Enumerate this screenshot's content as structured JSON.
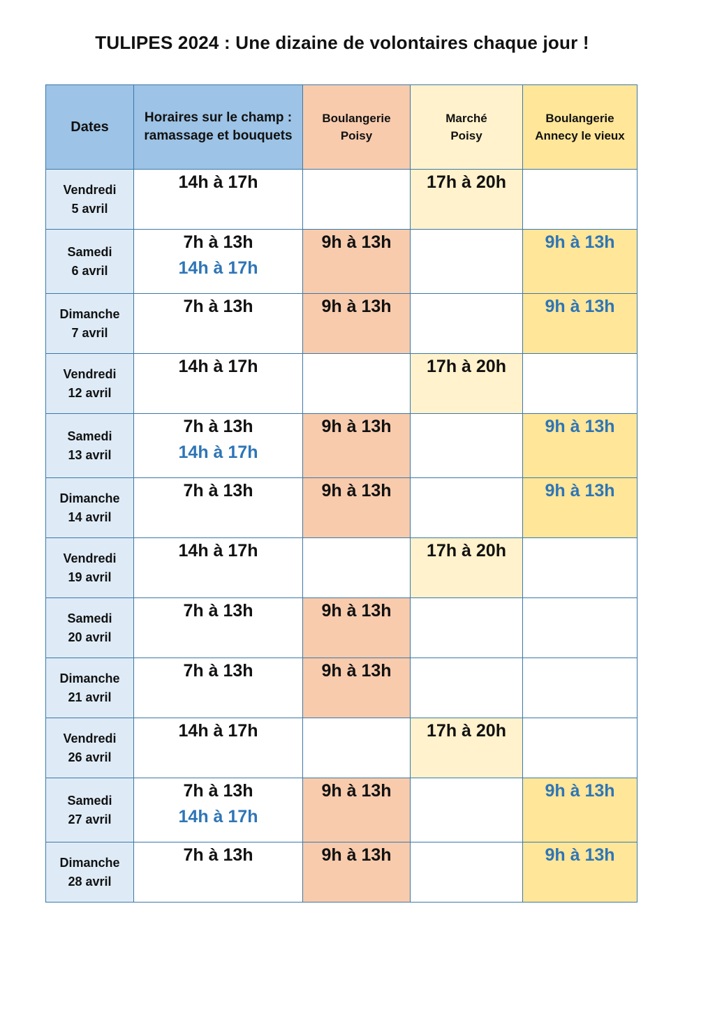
{
  "title": "TULIPES 2024 : Une dizaine de volontaires chaque jour !",
  "headers": {
    "dates": "Dates",
    "champ_line1": "Horaires sur le champ :",
    "champ_line2": "ramassage et bouquets",
    "boulangerie_poisy_line1": "Boulangerie",
    "boulangerie_poisy_line2": "Poisy",
    "marche_poisy_line1": "Marché",
    "marche_poisy_line2": "Poisy",
    "boulangerie_annecy_line1": "Boulangerie",
    "boulangerie_annecy_line2": "Annecy le vieux"
  },
  "rows": [
    {
      "day": "Vendredi",
      "date": "5 avril",
      "champ1": "14h à 17h",
      "champ2": "",
      "boul": "",
      "marche": "17h à 20h",
      "annecy": ""
    },
    {
      "day": "Samedi",
      "date": "6 avril",
      "champ1": "7h à 13h",
      "champ2": "14h à 17h",
      "boul": "9h à 13h",
      "marche": "",
      "annecy": "9h à 13h"
    },
    {
      "day": "Dimanche",
      "date": "7 avril",
      "champ1": "7h à 13h",
      "champ2": "",
      "boul": "9h à 13h",
      "marche": "",
      "annecy": "9h à 13h"
    },
    {
      "day": "Vendredi",
      "date": "12 avril",
      "champ1": "14h à 17h",
      "champ2": "",
      "boul": "",
      "marche": "17h à 20h",
      "annecy": ""
    },
    {
      "day": "Samedi",
      "date": "13 avril",
      "champ1": "7h à 13h",
      "champ2": "14h à 17h",
      "boul": "9h à 13h",
      "marche": "",
      "annecy": "9h à 13h"
    },
    {
      "day": "Dimanche",
      "date": "14 avril",
      "champ1": "7h à 13h",
      "champ2": "",
      "boul": "9h à 13h",
      "marche": "",
      "annecy": "9h à 13h"
    },
    {
      "day": "Vendredi",
      "date": "19 avril",
      "champ1": "14h à 17h",
      "champ2": "",
      "boul": "",
      "marche": "17h à 20h",
      "annecy": ""
    },
    {
      "day": "Samedi",
      "date": "20 avril",
      "champ1": "7h à 13h",
      "champ2": "",
      "boul": "9h à 13h",
      "marche": "",
      "annecy": ""
    },
    {
      "day": "Dimanche",
      "date": "21 avril",
      "champ1": "7h à 13h",
      "champ2": "",
      "boul": "9h à 13h",
      "marche": "",
      "annecy": ""
    },
    {
      "day": "Vendredi",
      "date": "26 avril",
      "champ1": "14h à 17h",
      "champ2": "",
      "boul": "",
      "marche": "17h à 20h",
      "annecy": ""
    },
    {
      "day": "Samedi",
      "date": "27 avril",
      "champ1": "7h à 13h",
      "champ2": "14h à 17h",
      "boul": "9h à 13h",
      "marche": "",
      "annecy": "9h à 13h"
    },
    {
      "day": "Dimanche",
      "date": "28 avril",
      "champ1": "7h à 13h",
      "champ2": "",
      "boul": "9h à 13h",
      "marche": "",
      "annecy": "9h à 13h"
    }
  ]
}
